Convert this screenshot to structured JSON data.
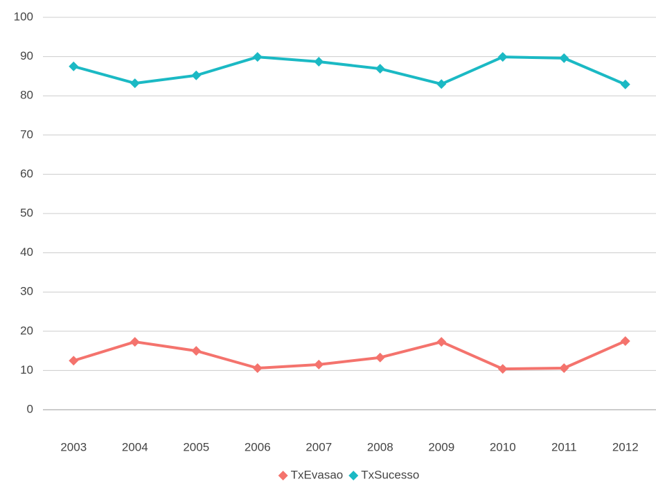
{
  "chart_data": {
    "type": "line",
    "categories": [
      "2003",
      "2004",
      "2005",
      "2006",
      "2007",
      "2008",
      "2009",
      "2010",
      "2011",
      "2012"
    ],
    "series": [
      {
        "name": "TxEvasao",
        "color": "#f4736d",
        "values": [
          12.5,
          17.3,
          15.0,
          10.6,
          11.5,
          13.3,
          17.3,
          10.4,
          10.6,
          17.5
        ]
      },
      {
        "name": "TxSucesso",
        "color": "#1bb9c4",
        "values": [
          87.5,
          83.2,
          85.2,
          89.9,
          88.7,
          86.9,
          83.0,
          89.9,
          89.6,
          82.9
        ]
      }
    ],
    "ylim": [
      0,
      100
    ],
    "yticks": [
      0,
      10,
      20,
      30,
      40,
      50,
      60,
      70,
      80,
      90,
      100
    ],
    "grid": true,
    "legend": "bottom"
  }
}
